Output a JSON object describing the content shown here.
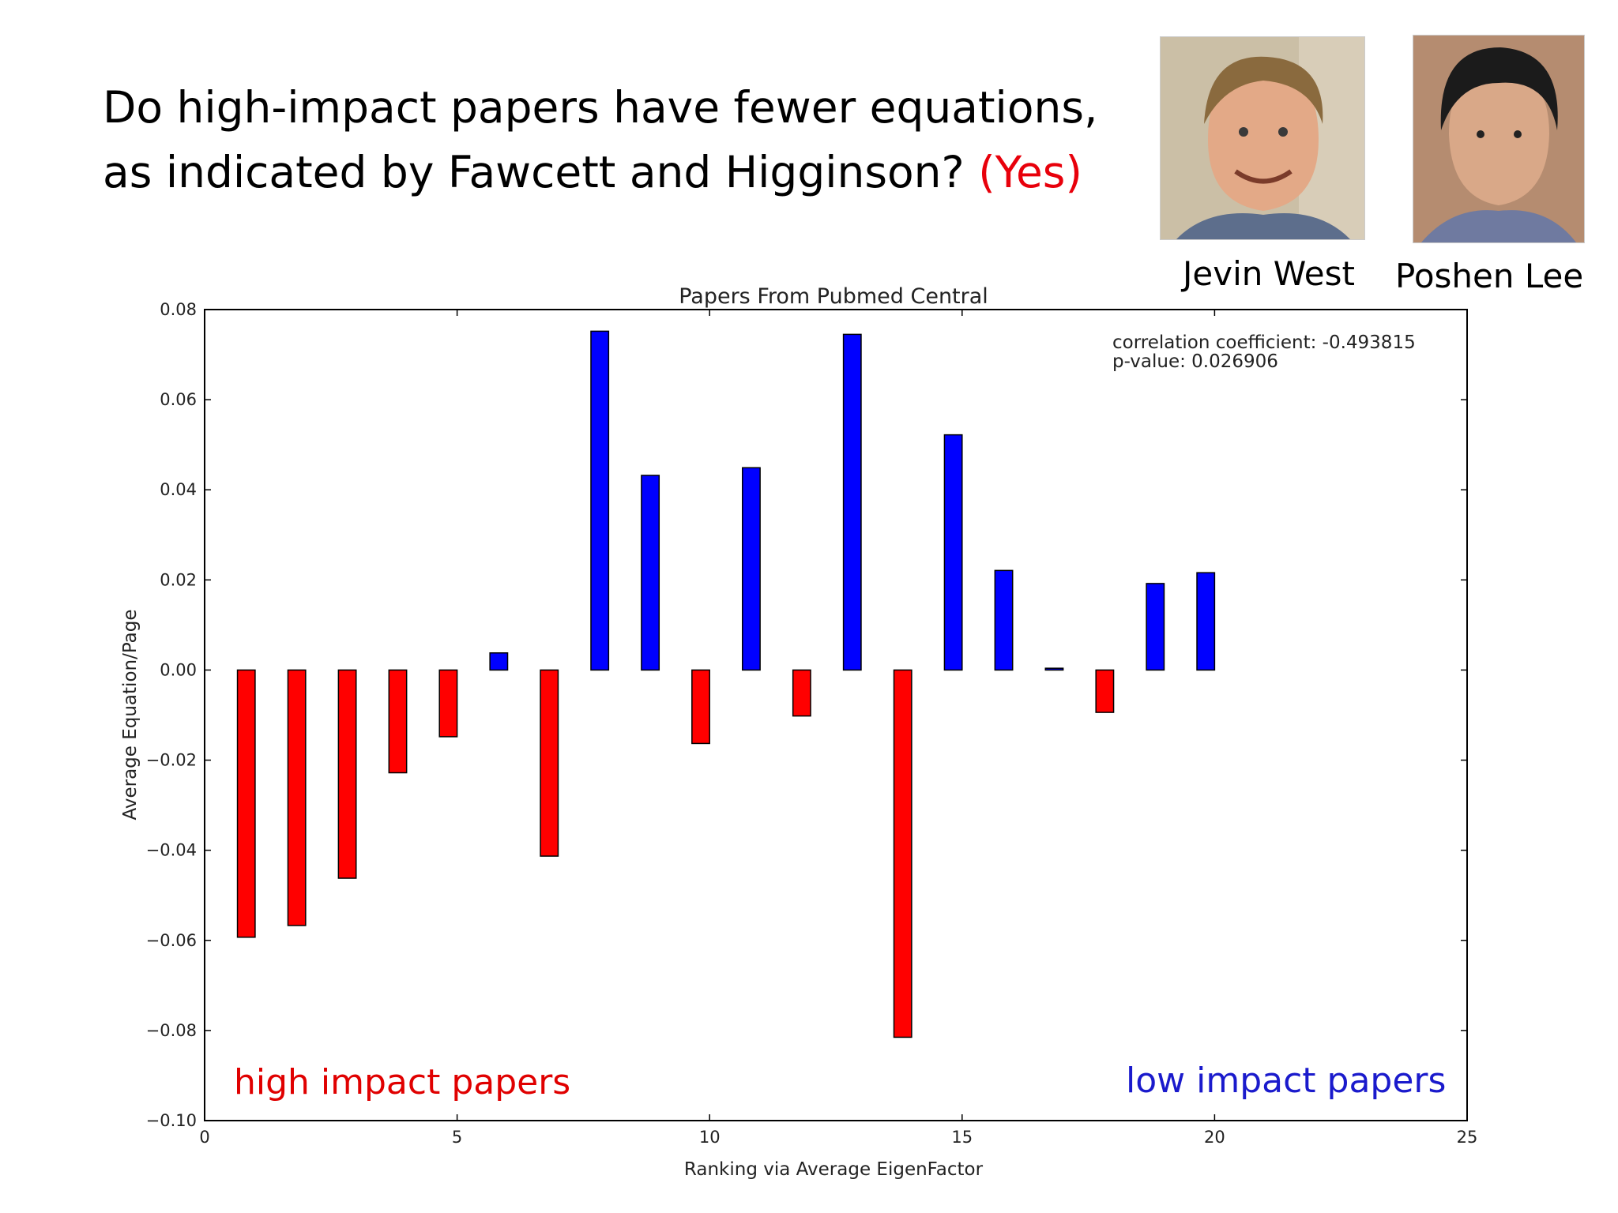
{
  "headline": {
    "line1": "Do high-impact papers have fewer equations,",
    "line2_prefix": "as indicated by Fawcett and Higginson? ",
    "line2_accent": "(Yes)"
  },
  "people": [
    {
      "name": "Jevin West"
    },
    {
      "name": "Poshen Lee"
    }
  ],
  "colors": {
    "negative": "#ff0000",
    "positive": "#0000ff",
    "accent": "#e8000b",
    "high_label": "#e00000",
    "low_label": "#1a1acc"
  },
  "chart_data": {
    "type": "bar",
    "title": "Papers From Pubmed Central",
    "xlabel": "Ranking via Average EigenFactor",
    "ylabel": "Average Equation/Page",
    "xlim": [
      0,
      25
    ],
    "ylim": [
      -0.1,
      0.08
    ],
    "xticks": [
      0,
      5,
      10,
      15,
      20,
      25
    ],
    "xtick_labels": [
      "0",
      "5",
      "10",
      "15",
      "20",
      "25"
    ],
    "yticks": [
      0.08,
      0.06,
      0.04,
      0.02,
      0.0,
      -0.02,
      -0.04,
      -0.06,
      -0.08,
      -0.1
    ],
    "ytick_labels": [
      "0.08",
      "0.06",
      "0.04",
      "0.02",
      "0.00",
      "−0.02",
      "−0.04",
      "−0.06",
      "−0.08",
      "−0.10"
    ],
    "x": [
      1,
      2,
      3,
      4,
      5,
      6,
      7,
      8,
      9,
      10,
      11,
      12,
      13,
      14,
      15,
      16,
      17,
      18,
      19,
      20
    ],
    "values": [
      -0.0593,
      -0.0567,
      -0.0462,
      -0.0228,
      -0.0148,
      0.0038,
      -0.0413,
      0.0752,
      0.0432,
      -0.0163,
      0.0449,
      -0.0102,
      0.0745,
      -0.0815,
      0.0522,
      0.0221,
      0.0004,
      -0.0094,
      0.0192,
      0.0216
    ],
    "annotation": {
      "line1": "correlation coefficient: -0.493815",
      "line2": "p-value: 0.026906"
    },
    "region_labels": {
      "left": "high impact papers",
      "right": "low impact papers"
    },
    "grid": false
  }
}
